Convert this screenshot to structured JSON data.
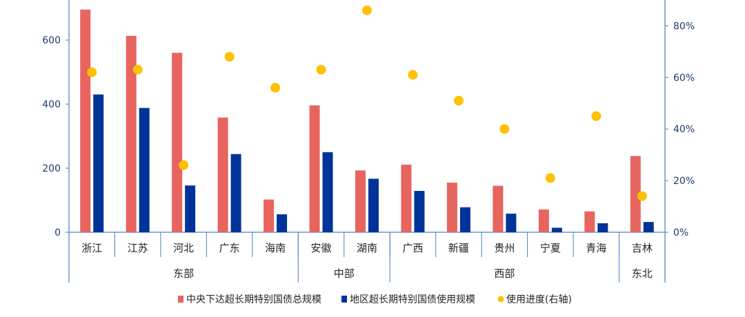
{
  "chart_data": {
    "type": "bar",
    "categories": [
      "浙江",
      "江苏",
      "河北",
      "广东",
      "海南",
      "安徽",
      "湖南",
      "广西",
      "新疆",
      "贵州",
      "宁夏",
      "青海",
      "吉林"
    ],
    "groups": [
      {
        "label": "东部",
        "count": 5
      },
      {
        "label": "中部",
        "count": 2
      },
      {
        "label": "西部",
        "count": 5
      },
      {
        "label": "东北",
        "count": 1
      }
    ],
    "series": [
      {
        "name": "中央下达超长期特别国债总规模",
        "axis": "left",
        "kind": "bar",
        "color": "#e8645e",
        "values": [
          695,
          613,
          560,
          358,
          102,
          396,
          193,
          211,
          155,
          145,
          71,
          65,
          238
        ]
      },
      {
        "name": "地区超长期特别国债使用规模",
        "axis": "left",
        "kind": "bar",
        "color": "#003399",
        "values": [
          430,
          388,
          146,
          244,
          56,
          250,
          167,
          129,
          78,
          58,
          14,
          28,
          32
        ]
      },
      {
        "name": "使用进度(右轴)",
        "axis": "right",
        "kind": "scatter",
        "color": "#ffc000",
        "values": [
          62,
          63,
          26,
          68,
          56,
          63,
          86,
          61,
          51,
          40,
          21,
          45,
          14
        ]
      }
    ],
    "y_left": {
      "ticks": [
        "0",
        "200",
        "400",
        "600"
      ],
      "ylim": [
        0,
        725
      ]
    },
    "y_right": {
      "ticks": [
        "0%",
        "20%",
        "40%",
        "60%",
        "80%"
      ],
      "ylim": [
        0,
        90
      ],
      "unit": "%"
    },
    "legend_position": "bottom",
    "grid": false
  }
}
